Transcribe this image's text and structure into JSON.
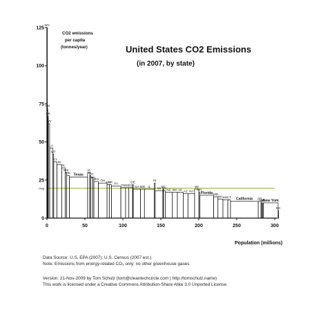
{
  "chart_data": {
    "type": "bar",
    "title": "United States CO2 Emissions",
    "subtitle": "(in 2007, by state)",
    "ylabel_lines": [
      "CO2 emissions",
      "per capita",
      "(tonnes/year)"
    ],
    "xlabel": "Population (millions)",
    "xlim": [
      0,
      300
    ],
    "ylim": [
      0,
      125
    ],
    "x_ticks": [
      "0",
      "50",
      "100",
      "150",
      "200",
      "250",
      "300"
    ],
    "y_ticks": [
      "0",
      "25",
      "50",
      "75",
      "100",
      "125"
    ],
    "avg_label": "Avg",
    "avg_value": 19.6,
    "avg_color": "#9ab43a",
    "bar_color": "#111111",
    "states": [
      {
        "name": "WY",
        "pop": 0.5,
        "value": 125
      },
      {
        "name": "ND",
        "pop": 0.6,
        "value": 72
      },
      {
        "name": "AK",
        "pop": 0.7,
        "value": 67
      },
      {
        "name": "WV",
        "pop": 1.8,
        "value": 62
      },
      {
        "name": "LA",
        "pop": 4.3,
        "value": 46
      },
      {
        "name": "MT",
        "pop": 1.0,
        "value": 42
      },
      {
        "name": "KY",
        "pop": 4.2,
        "value": 37
      },
      {
        "name": "IN",
        "pop": 6.3,
        "value": 35
      },
      {
        "name": "AL",
        "pop": 4.6,
        "value": 33
      },
      {
        "name": "NM",
        "pop": 2.0,
        "value": 30
      },
      {
        "name": "OK",
        "pop": 3.6,
        "value": 28
      },
      {
        "name": "Texas",
        "pop": 23.9,
        "value": 27,
        "big": true
      },
      {
        "name": "IA",
        "pop": 3.0,
        "value": 30
      },
      {
        "name": "CL",
        "pop": 0.9,
        "value": 28
      },
      {
        "name": "UT",
        "pop": 2.6,
        "value": 27
      },
      {
        "name": "NE",
        "pop": 1.8,
        "value": 25
      },
      {
        "name": "MO",
        "pop": 5.9,
        "value": 24
      },
      {
        "name": "OH",
        "pop": 11.5,
        "value": 23
      },
      {
        "name": "MS",
        "pop": 2.9,
        "value": 22
      },
      {
        "name": "AR",
        "pop": 2.8,
        "value": 22
      },
      {
        "name": "PA",
        "pop": 12.4,
        "value": 21
      },
      {
        "name": "TN",
        "pop": 6.2,
        "value": 20
      },
      {
        "name": "SC",
        "pop": 4.4,
        "value": 20
      },
      {
        "name": "CO",
        "pop": 4.9,
        "value": 20
      },
      {
        "name": "DE",
        "pop": 0.9,
        "value": 22
      },
      {
        "name": "GA",
        "pop": 9.5,
        "value": 19
      },
      {
        "name": "MN",
        "pop": 5.2,
        "value": 19
      },
      {
        "name": "IL",
        "pop": 12.9,
        "value": 19
      },
      {
        "name": "HI",
        "pop": 1.3,
        "value": 23
      },
      {
        "name": "MI",
        "pop": 10.1,
        "value": 18
      },
      {
        "name": "SD",
        "pop": 0.8,
        "value": 19
      },
      {
        "name": "NV",
        "pop": 2.6,
        "value": 18
      },
      {
        "name": "NC",
        "pop": 9.1,
        "value": 17
      },
      {
        "name": "WA",
        "pop": 6.5,
        "value": 17
      },
      {
        "name": "VA",
        "pop": 7.7,
        "value": 17
      },
      {
        "name": "AZ",
        "pop": 6.3,
        "value": 16
      },
      {
        "name": "NJ",
        "pop": 8.7,
        "value": 16
      },
      {
        "name": "WI",
        "pop": 5.6,
        "value": 19
      },
      {
        "name": "NH",
        "pop": 1.3,
        "value": 17
      },
      {
        "name": "Florida",
        "pop": 18.3,
        "value": 15,
        "big": true
      },
      {
        "name": "MD",
        "pop": 5.6,
        "value": 14
      },
      {
        "name": "WA",
        "pop": 6.5,
        "value": 12.5
      },
      {
        "name": "MA",
        "pop": 6.5,
        "value": 12
      },
      {
        "name": "CT",
        "pop": 3.5,
        "value": 12
      },
      {
        "name": "California",
        "pop": 36.6,
        "value": 11,
        "big": true
      },
      {
        "name": "OR",
        "pop": 3.7,
        "value": 11
      },
      {
        "name": "VT",
        "pop": 0.6,
        "value": 10
      },
      {
        "name": "ID",
        "pop": 1.5,
        "value": 10
      },
      {
        "name": "RI",
        "pop": 1.1,
        "value": 10
      },
      {
        "name": "New York",
        "pop": 19.3,
        "value": 10,
        "big": true
      },
      {
        "name": "DC",
        "pop": 0.6,
        "value": 5
      }
    ]
  },
  "footer": {
    "source": "Data Source: U.S. EPA (2007); U.S. Census (2007 est.)",
    "note": "Note: Emissions from energy-related CO₂ only; no other greenhouse gases",
    "version": "Version: 21-Nov-2009 by Tom Schulz (tom@cleantechcircle.com | http://tomschulz.name)",
    "license": "This work is licensed under a Creative Commons Attribution-Share Alike 3.0 Unported License."
  }
}
